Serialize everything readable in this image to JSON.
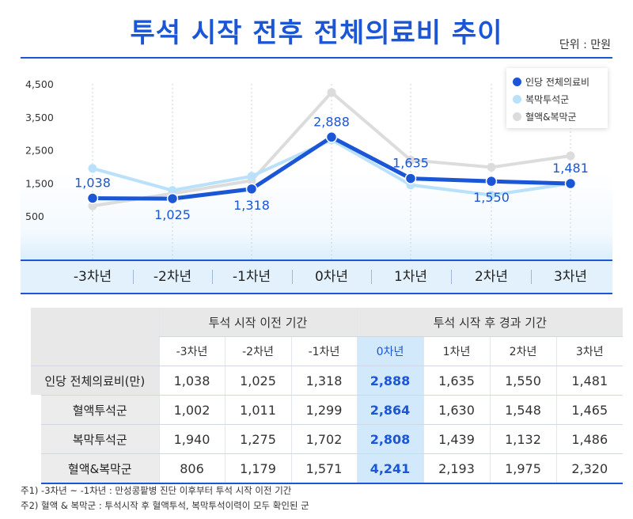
{
  "title": "투석 시작 전후 전체의료비 추이",
  "unit_label": "단위 : 만원",
  "chart_data": {
    "type": "line",
    "categories": [
      "-3차년",
      "-2차년",
      "-1차년",
      "0차년",
      "1차년",
      "2차년",
      "3차년"
    ],
    "y_ticks": [
      "4,500",
      "3,500",
      "2,500",
      "1,500",
      "500"
    ],
    "y_tick_values": [
      4500,
      3500,
      2500,
      1500,
      500
    ],
    "ylim": [
      0,
      4700
    ],
    "series": [
      {
        "name": "인당 전체의료비",
        "values": [
          1038,
          1025,
          1318,
          2888,
          1635,
          1550,
          1481
        ],
        "labels": [
          "1,038",
          "1,025",
          "1,318",
          "2,888",
          "1,635",
          "1,550",
          "1,481"
        ],
        "color": "#1a56d6"
      },
      {
        "name": "복막투석군",
        "values": [
          1940,
          1275,
          1702,
          2808,
          1439,
          1132,
          1486
        ],
        "color": "#b9e1fb"
      },
      {
        "name": "혈액&복막군",
        "values": [
          806,
          1179,
          1571,
          4241,
          2193,
          1975,
          2320
        ],
        "color": "#dcdcdc"
      }
    ],
    "legend_position": "top-right"
  },
  "table": {
    "group_headers": [
      "투석 시작 이전 기간",
      "투석 시작 후 경과 기간"
    ],
    "year_headers": [
      "-3차년",
      "-2차년",
      "-1차년",
      "0차년",
      "1차년",
      "2차년",
      "3차년"
    ],
    "rows": [
      {
        "label": "인당 전체의료비(만)",
        "values": [
          "1,038",
          "1,025",
          "1,318",
          "2,888",
          "1,635",
          "1,550",
          "1,481"
        ]
      },
      {
        "label": "혈액투석군",
        "values": [
          "1,002",
          "1,011",
          "1,299",
          "2,864",
          "1,630",
          "1,548",
          "1,465"
        ]
      },
      {
        "label": "복막투석군",
        "values": [
          "1,940",
          "1,275",
          "1,702",
          "2,808",
          "1,439",
          "1,132",
          "1,486"
        ]
      },
      {
        "label": "혈액&복막군",
        "values": [
          "806",
          "1,179",
          "1,571",
          "4,241",
          "2,193",
          "1,975",
          "2,320"
        ]
      }
    ]
  },
  "notes": [
    "주1) -3차년 ~ -1차년 : 만성콩팥병 진단 이후부터 투석 시작 이전 기간",
    "주2) 혈액 & 복막군 : 투석시작 후 혈액투석, 복막투석이력이 모두 확인된 군"
  ]
}
